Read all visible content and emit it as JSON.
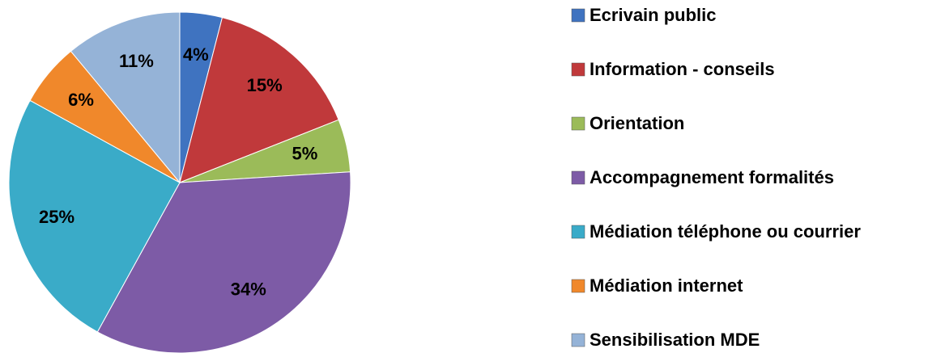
{
  "chart_data": {
    "type": "pie",
    "categories": [
      "Ecrivain public",
      "Information - conseils",
      "Orientation",
      "Accompagnement formalités",
      "Médiation téléphone ou courrier",
      "Médiation internet",
      "Sensibilisation MDE"
    ],
    "values": [
      4,
      15,
      5,
      34,
      25,
      6,
      11
    ],
    "value_labels": [
      "4%",
      "15%",
      "5%",
      "34%",
      "25%",
      "6%",
      "11%"
    ],
    "colors": [
      "#3f73c0",
      "#c0393b",
      "#9bbb59",
      "#7d5ba6",
      "#3aabc8",
      "#f0882b",
      "#95b3d7"
    ],
    "legend": "right"
  }
}
